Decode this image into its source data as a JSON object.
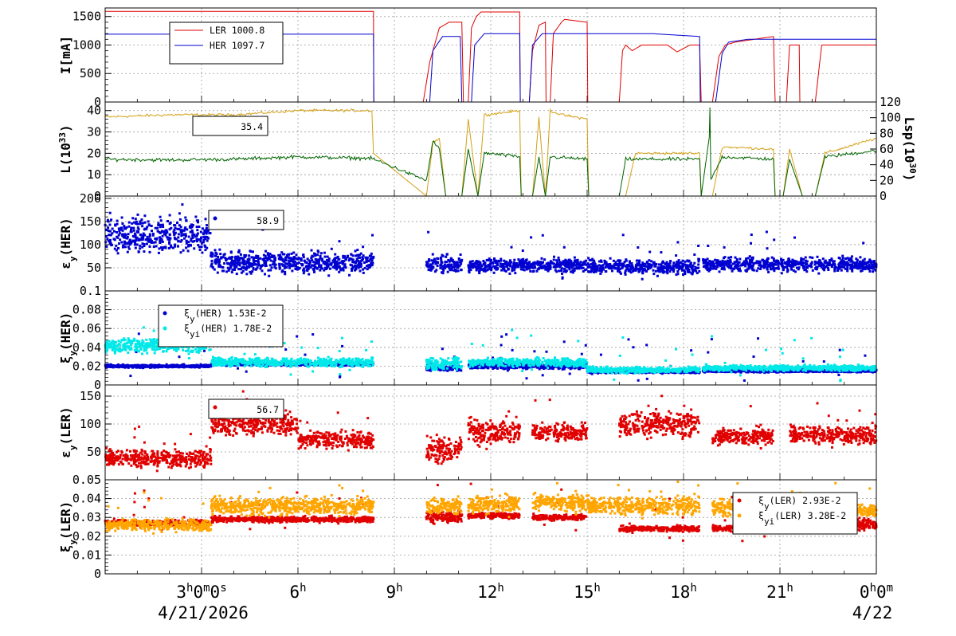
{
  "date_left": "4/21/2026",
  "date_right": "4/22",
  "x_ticks": [
    {
      "t": 3,
      "main": "3",
      "sup": "h",
      "mid": "0",
      "sup2": "m",
      "tail": "0",
      "sup3": "s"
    },
    {
      "t": 6,
      "main": "6",
      "sup": "h"
    },
    {
      "t": 9,
      "main": "9",
      "sup": "h"
    },
    {
      "t": 12,
      "main": "12",
      "sup": "h"
    },
    {
      "t": 15,
      "main": "15",
      "sup": "h"
    },
    {
      "t": 18,
      "main": "18",
      "sup": "h"
    },
    {
      "t": 21,
      "main": "21",
      "sup": "h"
    },
    {
      "t": 24,
      "main": "0",
      "sup": "h",
      "mid": "0",
      "sup2": "m"
    }
  ],
  "colors": {
    "ler": "#e00000",
    "her": "#0000d0",
    "lum": "#d4a017",
    "lsp": "#006400",
    "cyan": "#00e8e8",
    "orange": "#ffa500"
  },
  "chart_data": [
    {
      "type": "line",
      "ylabel": "I[mA]",
      "ylim": [
        0,
        1650
      ],
      "yticks": [
        "0",
        "500",
        "1000",
        "1500"
      ],
      "ytick_values": [
        0,
        500,
        1000,
        1500
      ],
      "x_unit": "hours since 4/21/2026 00:00",
      "series": [
        {
          "name": "LER",
          "legend_value": "1000.8",
          "color": "#e00000",
          "points": [
            [
              0,
              1590
            ],
            [
              8.35,
              1590
            ],
            [
              8.36,
              0
            ],
            [
              9.9,
              0
            ],
            [
              10.1,
              700
            ],
            [
              10.4,
              1300
            ],
            [
              10.7,
              1400
            ],
            [
              11.1,
              1400
            ],
            [
              11.15,
              0
            ],
            [
              11.3,
              0
            ],
            [
              11.4,
              1300
            ],
            [
              11.55,
              1500
            ],
            [
              11.7,
              1580
            ],
            [
              12.9,
              1580
            ],
            [
              12.92,
              0
            ],
            [
              13.2,
              0
            ],
            [
              13.3,
              900
            ],
            [
              13.5,
              1350
            ],
            [
              13.7,
              1400
            ],
            [
              13.72,
              0
            ],
            [
              13.85,
              0
            ],
            [
              13.95,
              1200
            ],
            [
              14.2,
              1400
            ],
            [
              14.3,
              1450
            ],
            [
              15.0,
              1400
            ],
            [
              15.02,
              0
            ],
            [
              16.0,
              0
            ],
            [
              16.1,
              900
            ],
            [
              16.2,
              1000
            ],
            [
              16.4,
              900
            ],
            [
              16.7,
              1000
            ],
            [
              17.5,
              1000
            ],
            [
              17.8,
              880
            ],
            [
              18.2,
              1000
            ],
            [
              18.5,
              1000
            ],
            [
              18.55,
              0
            ],
            [
              18.9,
              0
            ],
            [
              19.1,
              800
            ],
            [
              19.3,
              1000
            ],
            [
              19.6,
              1050
            ],
            [
              20.8,
              1150
            ],
            [
              20.85,
              0
            ],
            [
              21.2,
              0
            ],
            [
              21.3,
              1000
            ],
            [
              21.6,
              1000
            ],
            [
              21.62,
              0
            ],
            [
              22.1,
              0
            ],
            [
              22.3,
              1000
            ],
            [
              24,
              1000
            ]
          ]
        },
        {
          "name": "HER",
          "legend_value": "1097.7",
          "color": "#0000d0",
          "points": [
            [
              0,
              1190
            ],
            [
              8.35,
              1190
            ],
            [
              8.36,
              0
            ],
            [
              10.1,
              0
            ],
            [
              10.2,
              900
            ],
            [
              10.5,
              1150
            ],
            [
              11.05,
              1150
            ],
            [
              11.1,
              0
            ],
            [
              11.4,
              0
            ],
            [
              11.5,
              1000
            ],
            [
              11.8,
              1200
            ],
            [
              12.9,
              1200
            ],
            [
              12.92,
              0
            ],
            [
              13.2,
              0
            ],
            [
              13.3,
              1000
            ],
            [
              13.6,
              1200
            ],
            [
              15.0,
              1200
            ],
            [
              17.0,
              1200
            ],
            [
              18.5,
              1150
            ],
            [
              18.52,
              0
            ],
            [
              19.0,
              0
            ],
            [
              19.2,
              850
            ],
            [
              19.4,
              1050
            ],
            [
              20.0,
              1100
            ],
            [
              24,
              1100
            ]
          ]
        }
      ]
    },
    {
      "type": "line",
      "ylabel": "L(10^33)",
      "y2label": "Lsp(10^30)",
      "ylim": [
        0,
        44
      ],
      "y2lim": [
        0,
        120
      ],
      "yticks": [
        "0",
        "10",
        "20",
        "30",
        "40"
      ],
      "ytick_values": [
        0,
        10,
        20,
        30,
        40
      ],
      "y2ticks": [
        "0",
        "20",
        "40",
        "60",
        "80",
        "100",
        "120"
      ],
      "y2tick_values": [
        0,
        20,
        40,
        60,
        80,
        100,
        120
      ],
      "legend_text": "35.4",
      "series": [
        {
          "name": "L",
          "color": "#d4a017",
          "points": [
            [
              0,
              37
            ],
            [
              2,
              38
            ],
            [
              4,
              38
            ],
            [
              6,
              40
            ],
            [
              8.3,
              40
            ],
            [
              8.35,
              20
            ],
            [
              10,
              0
            ],
            [
              10.2,
              25
            ],
            [
              10.4,
              27
            ],
            [
              10.6,
              0
            ],
            [
              11.1,
              0
            ],
            [
              11.3,
              36
            ],
            [
              11.6,
              0
            ],
            [
              11.8,
              38
            ],
            [
              12.9,
              40
            ],
            [
              12.95,
              0
            ],
            [
              13.3,
              0
            ],
            [
              13.5,
              37
            ],
            [
              13.7,
              0
            ],
            [
              13.85,
              40
            ],
            [
              14.2,
              38
            ],
            [
              15.0,
              36
            ],
            [
              15.05,
              0
            ],
            [
              16.2,
              0
            ],
            [
              16.5,
              20
            ],
            [
              17.5,
              20
            ],
            [
              18.5,
              20
            ],
            [
              18.55,
              0
            ],
            [
              18.9,
              0
            ],
            [
              19.2,
              23
            ],
            [
              20.8,
              22
            ],
            [
              20.85,
              0
            ],
            [
              21.1,
              0
            ],
            [
              21.3,
              22
            ],
            [
              21.7,
              0
            ],
            [
              22.1,
              0
            ],
            [
              22.4,
              20
            ],
            [
              24,
              27
            ]
          ]
        },
        {
          "name": "Lsp",
          "color": "#006400",
          "points": [
            [
              0,
              47
            ],
            [
              2,
              46
            ],
            [
              4,
              47
            ],
            [
              6,
              50
            ],
            [
              8.3,
              48
            ],
            [
              10,
              20
            ],
            [
              10.2,
              70
            ],
            [
              10.4,
              60
            ],
            [
              10.6,
              0
            ],
            [
              11.1,
              0
            ],
            [
              11.3,
              60
            ],
            [
              11.6,
              0
            ],
            [
              11.8,
              55
            ],
            [
              12.9,
              50
            ],
            [
              12.95,
              0
            ],
            [
              13.3,
              0
            ],
            [
              13.5,
              50
            ],
            [
              13.7,
              0
            ],
            [
              13.85,
              50
            ],
            [
              15.0,
              47
            ],
            [
              15.05,
              0
            ],
            [
              16.0,
              0
            ],
            [
              16.2,
              47
            ],
            [
              18.5,
              47
            ],
            [
              18.55,
              0
            ],
            [
              18.8,
              75
            ],
            [
              18.82,
              115
            ],
            [
              18.85,
              20
            ],
            [
              19.2,
              50
            ],
            [
              20.8,
              47
            ],
            [
              20.85,
              0
            ],
            [
              21.1,
              0
            ],
            [
              21.3,
              47
            ],
            [
              21.7,
              0
            ],
            [
              22.1,
              0
            ],
            [
              22.4,
              50
            ],
            [
              24,
              58
            ]
          ]
        }
      ]
    },
    {
      "type": "scatter",
      "ylabel": "εy(HER)",
      "ylim": [
        0,
        205
      ],
      "yticks": [
        "50",
        "100",
        "150",
        "200"
      ],
      "ytick_values": [
        50,
        100,
        150,
        200
      ],
      "legend_text": "58.9",
      "series": [
        {
          "name": "",
          "color": "#0000d0",
          "segments": [
            [
              0,
              3.3,
              120,
              25
            ],
            [
              3.3,
              8.35,
              62,
              15
            ],
            [
              10.0,
              11.1,
              58,
              12
            ],
            [
              11.3,
              15.0,
              55,
              10
            ],
            [
              15.0,
              18.5,
              52,
              10
            ],
            [
              18.6,
              24,
              57,
              10
            ]
          ]
        }
      ]
    },
    {
      "type": "scatter",
      "ylabel": "ξy(HER)",
      "ylim": [
        0,
        0.1
      ],
      "yticks": [
        "0",
        "0.02",
        "0.04",
        "0.06",
        "0.08",
        "0.1"
      ],
      "ytick_values": [
        0,
        0.02,
        0.04,
        0.06,
        0.08,
        0.1
      ],
      "series": [
        {
          "name": "ξy(HER)",
          "legend_value": "1.53E-2",
          "color": "#0000d0",
          "segments": [
            [
              0,
              3.3,
              0.02,
              0.001
            ],
            [
              3.3,
              8.35,
              0.022,
              0.001
            ],
            [
              10.0,
              11.1,
              0.018,
              0.002
            ],
            [
              11.3,
              15.0,
              0.02,
              0.002
            ],
            [
              15.0,
              18.5,
              0.014,
              0.001
            ],
            [
              18.6,
              24,
              0.015,
              0.001
            ]
          ]
        },
        {
          "name": "ξyi(HER)",
          "legend_value": "1.78E-2",
          "color": "#00e8e8",
          "segments": [
            [
              0,
              3.3,
              0.042,
              0.005
            ],
            [
              3.3,
              8.35,
              0.024,
              0.003
            ],
            [
              10.0,
              11.1,
              0.022,
              0.004
            ],
            [
              11.3,
              15.0,
              0.024,
              0.003
            ],
            [
              15.0,
              18.5,
              0.016,
              0.002
            ],
            [
              18.6,
              24,
              0.018,
              0.002
            ]
          ]
        }
      ]
    },
    {
      "type": "scatter",
      "ylabel": "εy(LER)",
      "ylim": [
        0,
        170
      ],
      "yticks": [
        "50",
        "100",
        "150"
      ],
      "ytick_values": [
        50,
        100,
        150
      ],
      "legend_text": "56.7",
      "series": [
        {
          "name": "",
          "color": "#e00000",
          "segments": [
            [
              0,
              3.3,
              38,
              10
            ],
            [
              3.3,
              6.0,
              100,
              14
            ],
            [
              6.0,
              8.35,
              72,
              10
            ],
            [
              10.0,
              11.1,
              55,
              15
            ],
            [
              11.3,
              12.9,
              85,
              15
            ],
            [
              13.3,
              15.0,
              85,
              10
            ],
            [
              16.0,
              18.5,
              100,
              15
            ],
            [
              18.9,
              20.8,
              78,
              10
            ],
            [
              21.3,
              24,
              80,
              10
            ]
          ]
        }
      ]
    },
    {
      "type": "scatter",
      "ylabel": "ξy(LER)",
      "ylim": [
        0,
        0.05
      ],
      "yticks": [
        "0",
        "0.01",
        "0.02",
        "0.03",
        "0.04",
        "0.05"
      ],
      "ytick_values": [
        0,
        0.01,
        0.02,
        0.03,
        0.04,
        0.05
      ],
      "series": [
        {
          "name": "ξy(LER)",
          "legend_value": "2.93E-2",
          "color": "#e00000",
          "segments": [
            [
              0,
              3.3,
              0.027,
              0.001
            ],
            [
              3.3,
              8.35,
              0.029,
              0.001
            ],
            [
              10.0,
              11.1,
              0.03,
              0.002
            ],
            [
              11.3,
              12.9,
              0.031,
              0.001
            ],
            [
              13.3,
              15.0,
              0.03,
              0.001
            ],
            [
              16.0,
              18.5,
              0.024,
              0.001
            ],
            [
              18.9,
              20.8,
              0.024,
              0.001
            ],
            [
              21.3,
              24,
              0.026,
              0.002
            ]
          ]
        },
        {
          "name": "ξyi(LER)",
          "legend_value": "3.28E-2",
          "color": "#ffa500",
          "segments": [
            [
              0,
              3.3,
              0.026,
              0.002
            ],
            [
              3.3,
              8.35,
              0.036,
              0.003
            ],
            [
              10.0,
              11.1,
              0.036,
              0.003
            ],
            [
              11.3,
              12.9,
              0.037,
              0.003
            ],
            [
              13.3,
              15.0,
              0.038,
              0.003
            ],
            [
              15.0,
              18.5,
              0.036,
              0.003
            ],
            [
              18.9,
              20.8,
              0.035,
              0.003
            ],
            [
              21.3,
              24,
              0.034,
              0.002
            ]
          ]
        }
      ]
    }
  ]
}
